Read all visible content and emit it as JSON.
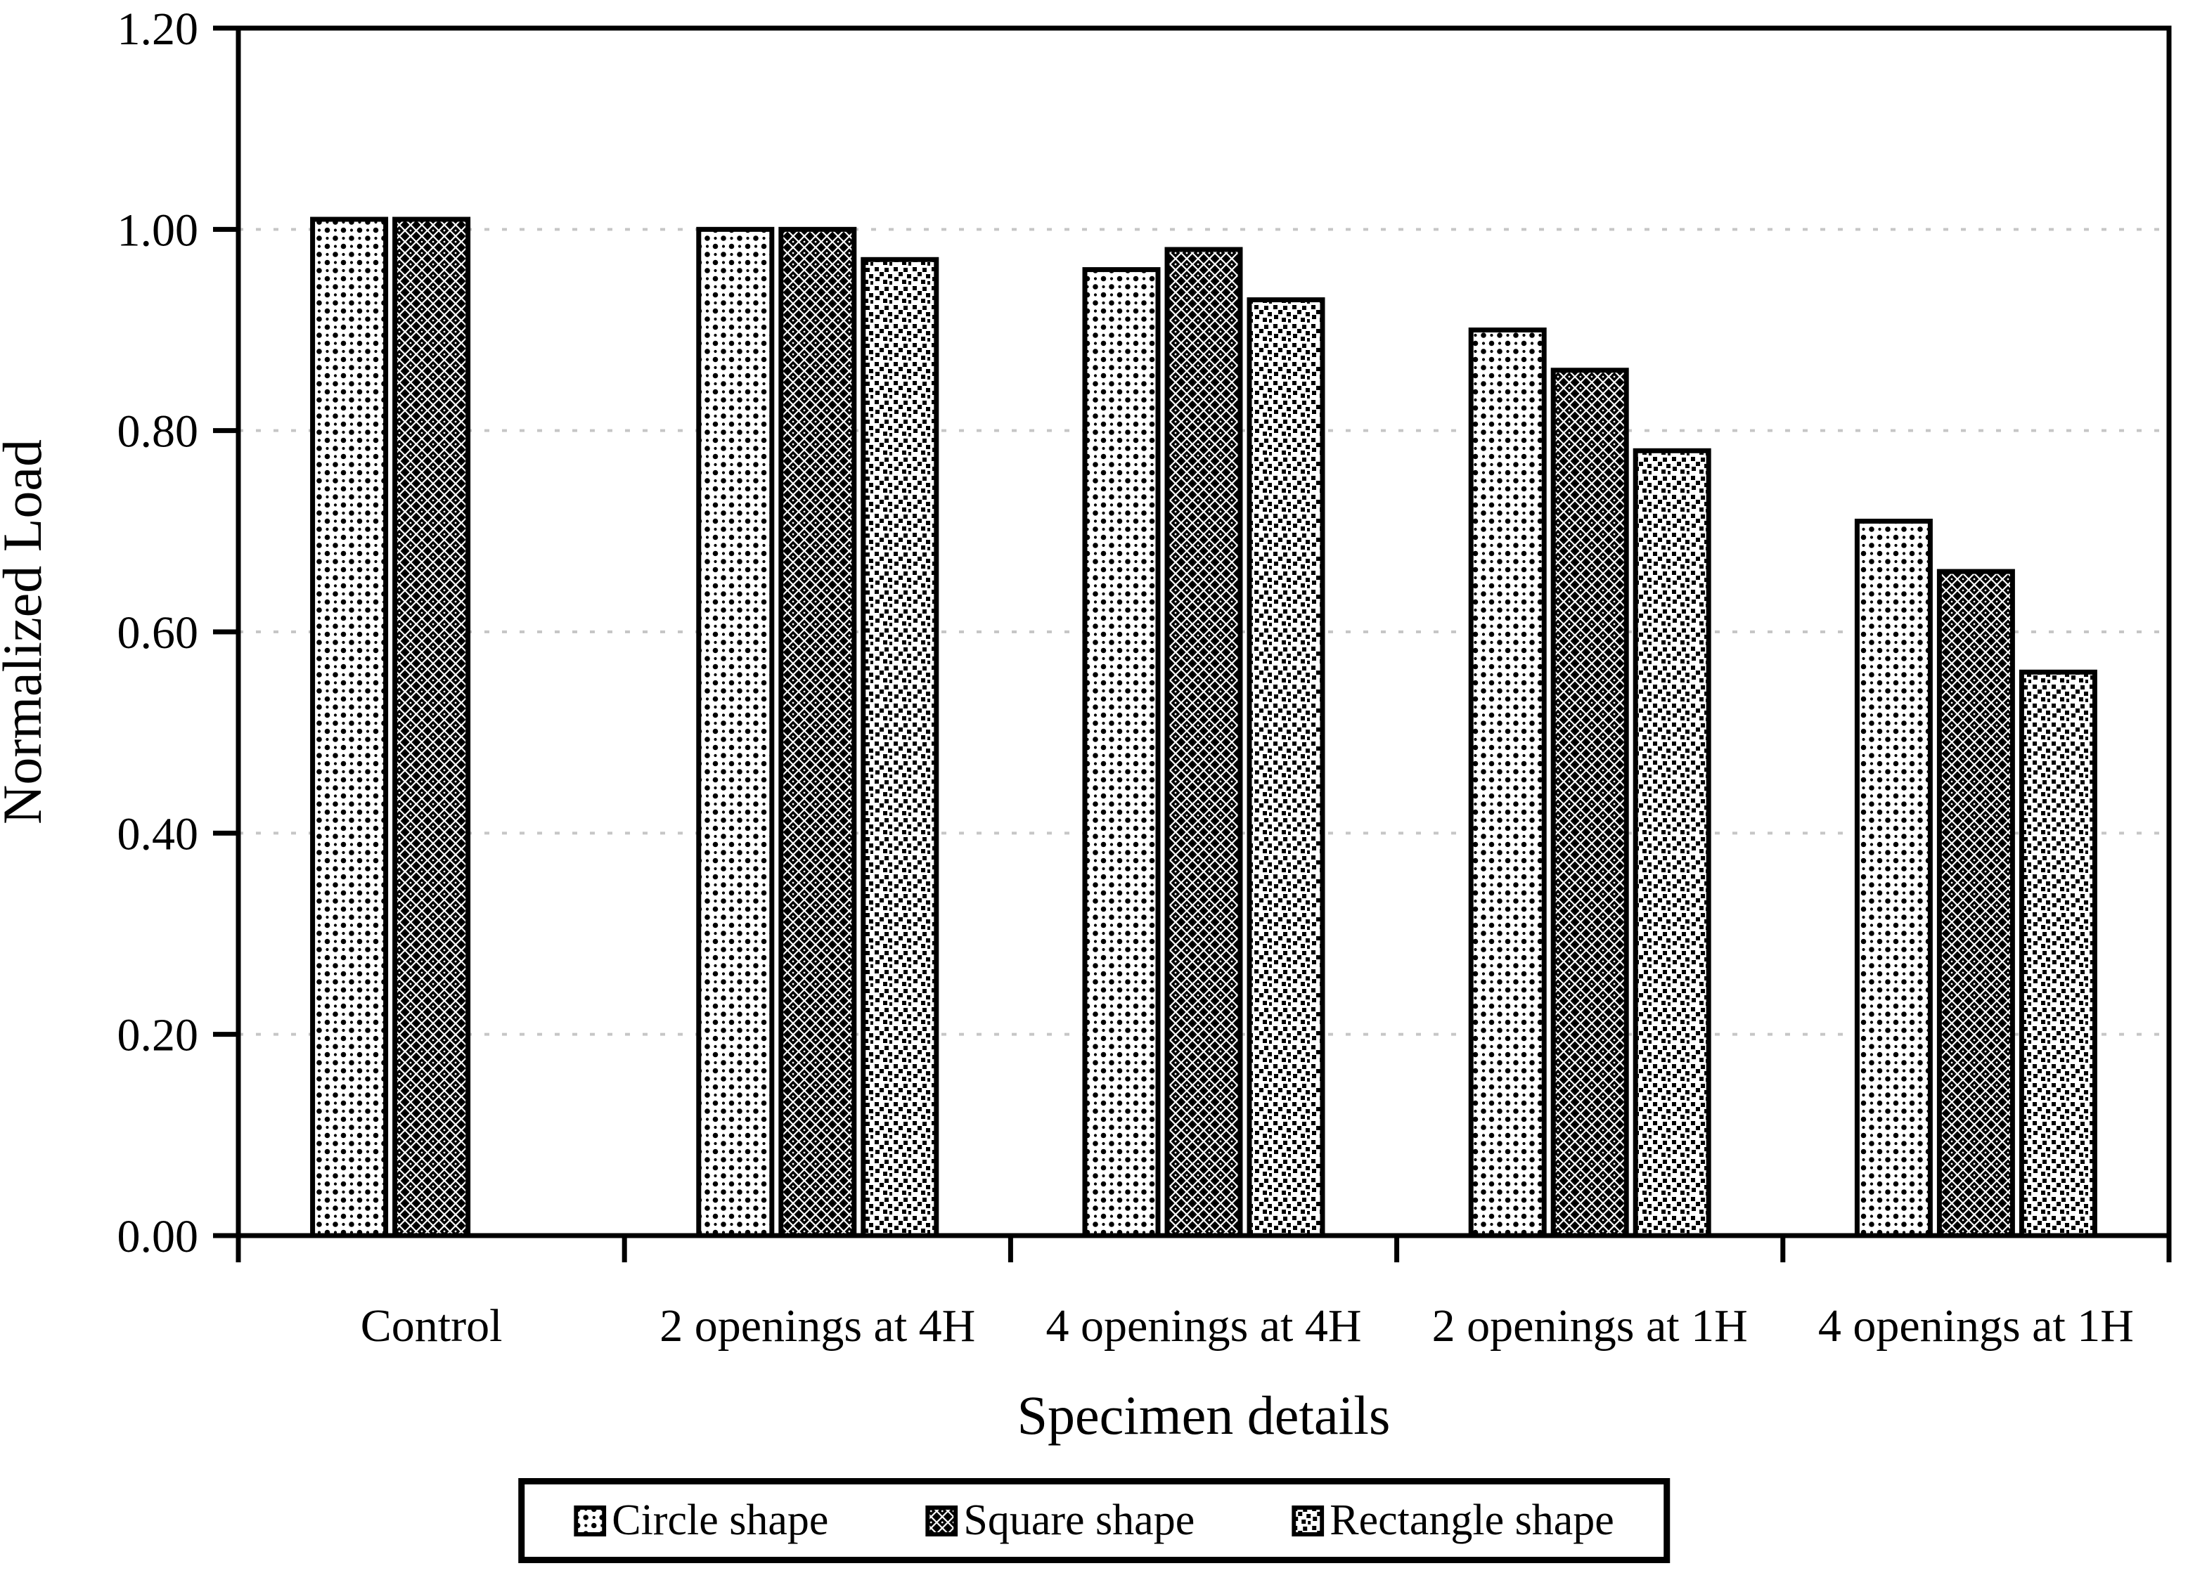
{
  "page": {
    "background": "#ffffff"
  },
  "chart_data": {
    "type": "bar",
    "title": "",
    "xlabel": "Specimen details",
    "ylabel": "Normalized Load",
    "categories": [
      "Control",
      "2 openings at 4H",
      "4 openings at 4H",
      "2 openings at 1H",
      "4 openings at 1H"
    ],
    "series": [
      {
        "name": "Circle shape",
        "pattern": "sparse-dots",
        "fill_bg": "#ffffff",
        "fill_fg": "#000000",
        "values": [
          1.01,
          1.0,
          0.96,
          0.9,
          0.71
        ]
      },
      {
        "name": "Square shape",
        "pattern": "dark-trellis",
        "fill_bg": "#000000",
        "fill_fg": "#ffffff",
        "values": [
          1.01,
          1.0,
          0.98,
          0.86,
          0.66
        ]
      },
      {
        "name": "Rectangle shape",
        "pattern": "medium-squares",
        "fill_bg": "#ffffff",
        "fill_fg": "#000000",
        "values": [
          null,
          0.97,
          0.93,
          0.78,
          0.56
        ]
      }
    ],
    "ylim": [
      0.0,
      1.2
    ],
    "ytick_step": 0.2,
    "ytick_labels": [
      "0.00",
      "0.20",
      "0.40",
      "0.60",
      "0.80",
      "1.00",
      "1.20"
    ],
    "grid": {
      "horizontal": true,
      "style": "dotted",
      "color": "#c6c6c6"
    },
    "axis_color": "#000000",
    "bar_outline_color": "#000000",
    "plot_border": "full-box",
    "legend": {
      "position": "bottom-center",
      "items": [
        "Circle shape",
        "Square shape",
        "Rectangle shape"
      ]
    }
  }
}
